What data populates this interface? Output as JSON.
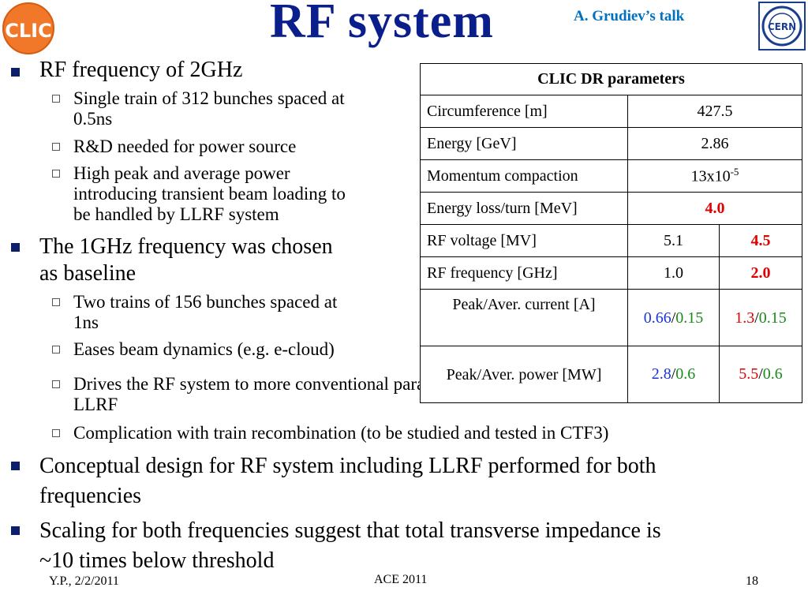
{
  "header": {
    "title": "RF system",
    "credit": "A. Grudiev’s talk",
    "clic_logo_text": "CLIC",
    "cern_logo_text": "CERN"
  },
  "bullets": [
    {
      "text": "RF frequency of 2GHz",
      "sub": [
        {
          "lines": [
            "Single train of 312 bunches spaced at",
            "0.5ns"
          ]
        },
        {
          "lines": [
            "R&D needed for power source"
          ]
        },
        {
          "lines": [
            "High peak and average power",
            "introducing transient beam loading to",
            "be handled by LLRF system"
          ]
        }
      ]
    },
    {
      "lines": [
        "The 1GHz frequency was chosen",
        "as baseline"
      ],
      "sub": [
        {
          "lines": [
            "Two trains of 156 bunches spaced at",
            "1ns"
          ]
        },
        {
          "lines": [
            "Eases beam dynamics (e.g. e-cloud)"
          ]
        },
        {
          "lines": [
            "Drives the RF system to more conventional parameters for power source and",
            "LLRF"
          ]
        },
        {
          "lines": [
            "Complication with train recombination (to be studied and tested in CTF3)"
          ]
        }
      ]
    },
    {
      "lines": [
        "Conceptual design for RF system including LLRF performed for both",
        "frequencies"
      ]
    },
    {
      "lines": [
        "Scaling for both frequencies suggest that total transverse impedance is",
        "~10 times below threshold"
      ]
    }
  ],
  "table": {
    "caption": "CLIC DR parameters",
    "rows": [
      {
        "label": "Circumference [m]",
        "value": "427.5"
      },
      {
        "label": "Energy [GeV]",
        "value": "2.86"
      },
      {
        "label": "Momentum compaction",
        "value_base": "13x10",
        "value_exp": "-5"
      },
      {
        "label": "Energy loss/turn [MeV]",
        "value": "4.0"
      },
      {
        "label": "RF voltage [MV]",
        "v1": "5.1",
        "v2": "4.5"
      },
      {
        "label": "RF frequency  [GHz]",
        "v1": "1.0",
        "v2": "2.0"
      },
      {
        "label": "Peak/Aver. current [A]",
        "v1_peak": "0.66",
        "v1_avg": "0.15",
        "v2_peak": "1.3",
        "v2_avg": "0.15"
      },
      {
        "label": "Peak/Aver. power [MW]",
        "v1_peak": "2.8",
        "v1_avg": "0.6",
        "v2_peak": "5.5",
        "v2_avg": "0.6"
      }
    ]
  },
  "footer": {
    "author_date": "Y.P., 2/2/2011",
    "event": "ACE 2011",
    "page": "18"
  },
  "colors": {
    "title": "#0b1f8c",
    "credit": "#0070c0",
    "highlight_red": "#e00000",
    "peak_blue": "#1a35d6",
    "avg_green": "#1a8a1a"
  }
}
